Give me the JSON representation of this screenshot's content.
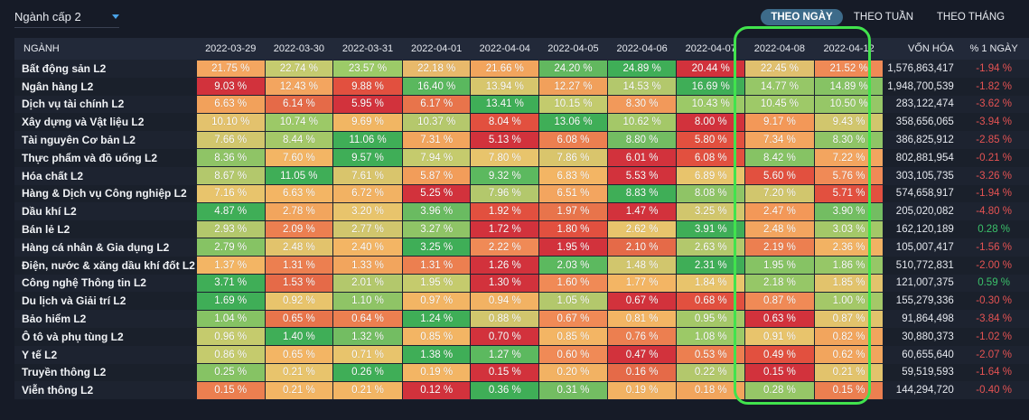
{
  "dropdown": {
    "label": "Ngành cấp 2"
  },
  "tabs": [
    {
      "label": "THEO NGÀY",
      "active": true
    },
    {
      "label": "THEO TUẦN",
      "active": false
    },
    {
      "label": "THEO THÁNG",
      "active": false
    }
  ],
  "table": {
    "headers": {
      "name": "NGÀNH",
      "dates": [
        "2022-03-29",
        "2022-03-30",
        "2022-03-31",
        "2022-04-01",
        "2022-04-04",
        "2022-04-05",
        "2022-04-06",
        "2022-04-07",
        "2022-04-08",
        "2022-04-12"
      ],
      "cap": "VỐN HÓA",
      "chg": "% 1 NGÀY"
    },
    "rows": [
      {
        "name": "Bất động sản L2",
        "values": [
          "21.75 %",
          "22.74 %",
          "23.57 %",
          "22.18 %",
          "21.66 %",
          "24.20 %",
          "24.89 %",
          "20.44 %",
          "22.45 %",
          "21.52 %"
        ],
        "colors": [
          "#f4a660",
          "#c5cb6f",
          "#9ccb68",
          "#e8b96b",
          "#f2a55d",
          "#62b85f",
          "#3fae57",
          "#d2323c",
          "#e0c06e",
          "#f08a56"
        ],
        "cap": "1,576,863,417",
        "chg": "-1.94 %"
      },
      {
        "name": "Ngân hàng L2",
        "values": [
          "9.03 %",
          "12.43 %",
          "9.88 %",
          "16.40 %",
          "13.94 %",
          "12.27 %",
          "14.53 %",
          "16.69 %",
          "14.77 %",
          "14.89 %"
        ],
        "colors": [
          "#d2323c",
          "#f3a55f",
          "#e2503f",
          "#5ab85e",
          "#d7c66c",
          "#f1a05b",
          "#b3c86c",
          "#3fae57",
          "#96c767",
          "#86c364"
        ],
        "cap": "1,948,700,539",
        "chg": "-1.82 %"
      },
      {
        "name": "Dịch vụ tài chính L2",
        "values": [
          "6.63 %",
          "6.14 %",
          "5.95 %",
          "6.17 %",
          "13.41 %",
          "10.15 %",
          "8.30 %",
          "10.43 %",
          "10.45 %",
          "10.50 %"
        ],
        "colors": [
          "#f2a15b",
          "#e56a48",
          "#d2323c",
          "#e8744b",
          "#3fae57",
          "#c3cb6d",
          "#f2995a",
          "#9cc967",
          "#9ec968",
          "#96c767"
        ],
        "cap": "283,122,474",
        "chg": "-3.62 %"
      },
      {
        "name": "Xây dựng và Vật liệu L2",
        "values": [
          "10.10 %",
          "10.74 %",
          "9.69 %",
          "10.37 %",
          "8.04 %",
          "13.06 %",
          "10.62 %",
          "8.00 %",
          "9.17 %",
          "9.43 %"
        ],
        "colors": [
          "#e3c26d",
          "#9cc967",
          "#f1b663",
          "#b5c86c",
          "#e2503f",
          "#3fae57",
          "#a4c868",
          "#d2323c",
          "#f39858",
          "#d1c66d"
        ],
        "cap": "358,656,065",
        "chg": "-3.94 %"
      },
      {
        "name": "Tài nguyên Cơ bản L2",
        "values": [
          "7.66 %",
          "8.44 %",
          "11.06 %",
          "7.31 %",
          "5.13 %",
          "6.08 %",
          "8.80 %",
          "5.80 %",
          "7.34 %",
          "8.30 %"
        ],
        "colors": [
          "#d1c66d",
          "#a4c868",
          "#3fae57",
          "#f2a55d",
          "#d2323c",
          "#ec7f50",
          "#73bd62",
          "#e2503f",
          "#f3a55f",
          "#8fc466"
        ],
        "cap": "386,825,912",
        "chg": "-2.85 %"
      },
      {
        "name": "Thực phẩm và đồ uống L2",
        "values": [
          "8.36 %",
          "7.60 %",
          "9.57 %",
          "7.94 %",
          "7.80 %",
          "7.86 %",
          "6.01 %",
          "6.08 %",
          "8.42 %",
          "7.22 %"
        ],
        "colors": [
          "#8fc466",
          "#f3b564",
          "#3fae57",
          "#c5cb6d",
          "#e8c46c",
          "#d9c56c",
          "#d2323c",
          "#e2503f",
          "#86c364",
          "#f3a55f"
        ],
        "cap": "802,881,954",
        "chg": "-0.21 %"
      },
      {
        "name": "Hóa chất L2",
        "values": [
          "8.67 %",
          "11.05 %",
          "7.61 %",
          "5.87 %",
          "9.32 %",
          "6.83 %",
          "5.53 %",
          "6.89 %",
          "5.60 %",
          "5.76 %"
        ],
        "colors": [
          "#b3c86c",
          "#3fae57",
          "#d9c56c",
          "#f29d5a",
          "#5cb95f",
          "#f3b564",
          "#d2323c",
          "#e8c46c",
          "#e2503f",
          "#f08a56"
        ],
        "cap": "303,105,735",
        "chg": "-3.26 %"
      },
      {
        "name": "Hàng & Dịch vụ Công nghiệp L2",
        "values": [
          "7.16 %",
          "6.63 %",
          "6.72 %",
          "5.25 %",
          "7.96 %",
          "6.51 %",
          "8.83 %",
          "8.08 %",
          "7.20 %",
          "5.71 %"
        ],
        "colors": [
          "#e8c46c",
          "#f3b564",
          "#f2b263",
          "#d2323c",
          "#b3c86c",
          "#f3a55f",
          "#3fae57",
          "#8fc466",
          "#d1c66d",
          "#e2503f"
        ],
        "cap": "574,658,917",
        "chg": "-1.94 %"
      },
      {
        "name": "Dầu khí L2",
        "values": [
          "4.87 %",
          "2.78 %",
          "3.20 %",
          "3.96 %",
          "1.92 %",
          "1.97 %",
          "1.47 %",
          "3.25 %",
          "2.47 %",
          "3.90 %"
        ],
        "colors": [
          "#3fae57",
          "#f2a55d",
          "#e8c46c",
          "#6abb61",
          "#e2503f",
          "#e8744b",
          "#d2323c",
          "#d1c66d",
          "#f39858",
          "#73bd62"
        ],
        "cap": "205,020,082",
        "chg": "-4.80 %"
      },
      {
        "name": "Bán lẻ L2",
        "values": [
          "2.93 %",
          "2.09 %",
          "2.77 %",
          "3.27 %",
          "1.72 %",
          "1.80 %",
          "2.62 %",
          "3.91 %",
          "2.48 %",
          "3.03 %"
        ],
        "colors": [
          "#b3c86c",
          "#ec7f50",
          "#d1c66d",
          "#8fc466",
          "#d2323c",
          "#e2503f",
          "#e8c46c",
          "#3fae57",
          "#f3a55f",
          "#a4c868"
        ],
        "cap": "162,120,189",
        "chg": "0.28 %"
      },
      {
        "name": "Hàng cá nhân & Gia dụng L2",
        "values": [
          "2.79 %",
          "2.48 %",
          "2.40 %",
          "3.25 %",
          "2.22 %",
          "1.95 %",
          "2.10 %",
          "2.63 %",
          "2.19 %",
          "2.36 %"
        ],
        "colors": [
          "#86c364",
          "#e2c36c",
          "#f3b564",
          "#3fae57",
          "#f08a56",
          "#d2323c",
          "#e56a48",
          "#b3c86c",
          "#ec7f50",
          "#f2b263"
        ],
        "cap": "105,007,417",
        "chg": "-1.56 %"
      },
      {
        "name": "Điện, nước & xăng dầu khí đốt L2",
        "values": [
          "1.37 %",
          "1.31 %",
          "1.33 %",
          "1.31 %",
          "1.26 %",
          "2.03 %",
          "1.48 %",
          "2.31 %",
          "1.95 %",
          "1.86 %"
        ],
        "colors": [
          "#f3b564",
          "#ec7f50",
          "#f2a55d",
          "#ec7f50",
          "#d2323c",
          "#5cb95f",
          "#d1c66d",
          "#3fae57",
          "#86c364",
          "#96c767"
        ],
        "cap": "510,772,831",
        "chg": "-2.00 %"
      },
      {
        "name": "Công nghệ Thông tin L2",
        "values": [
          "3.71 %",
          "1.53 %",
          "2.01 %",
          "1.95 %",
          "1.30 %",
          "1.60 %",
          "1.77 %",
          "1.84 %",
          "2.18 %",
          "1.85 %"
        ],
        "colors": [
          "#3fae57",
          "#e56a48",
          "#b3c86c",
          "#c5cb6d",
          "#d2323c",
          "#f08a56",
          "#f3b564",
          "#e8c46c",
          "#96c767",
          "#e2c36c"
        ],
        "cap": "121,007,375",
        "chg": "0.59 %"
      },
      {
        "name": "Du lịch và Giải trí L2",
        "values": [
          "1.69 %",
          "0.92 %",
          "1.10 %",
          "0.97 %",
          "0.94 %",
          "1.05 %",
          "0.67 %",
          "0.68 %",
          "0.87 %",
          "1.00 %"
        ],
        "colors": [
          "#3fae57",
          "#e8c46c",
          "#8fc466",
          "#f3b564",
          "#f2b263",
          "#b3c86c",
          "#d2323c",
          "#e2503f",
          "#f08a56",
          "#a4c868"
        ],
        "cap": "155,279,336",
        "chg": "-0.30 %"
      },
      {
        "name": "Bảo hiểm L2",
        "values": [
          "1.04 %",
          "0.65 %",
          "0.64 %",
          "1.24 %",
          "0.88 %",
          "0.67 %",
          "0.81 %",
          "0.95 %",
          "0.63 %",
          "0.87 %"
        ],
        "colors": [
          "#86c364",
          "#e8744b",
          "#ec7f50",
          "#3fae57",
          "#d1c66d",
          "#f08a56",
          "#f3b564",
          "#a4c868",
          "#d2323c",
          "#e2c36c"
        ],
        "cap": "91,864,498",
        "chg": "-3.84 %"
      },
      {
        "name": "Ô tô và phụ tùng L2",
        "values": [
          "0.96 %",
          "1.40 %",
          "1.32 %",
          "0.85 %",
          "0.70 %",
          "0.85 %",
          "0.76 %",
          "1.08 %",
          "0.91 %",
          "0.82 %"
        ],
        "colors": [
          "#c5cb6d",
          "#3fae57",
          "#73bd62",
          "#f3b564",
          "#d2323c",
          "#f3b564",
          "#ec7f50",
          "#9cc967",
          "#e8c46c",
          "#f2a55d"
        ],
        "cap": "30,880,373",
        "chg": "-1.02 %"
      },
      {
        "name": "Y tế L2",
        "values": [
          "0.86 %",
          "0.65 %",
          "0.71 %",
          "1.38 %",
          "1.27 %",
          "0.60 %",
          "0.47 %",
          "0.53 %",
          "0.49 %",
          "0.62 %"
        ],
        "colors": [
          "#c5cb6d",
          "#f3b564",
          "#e8c46c",
          "#3fae57",
          "#5cb95f",
          "#f08a56",
          "#d2323c",
          "#ec7f50",
          "#e2503f",
          "#f2a55d"
        ],
        "cap": "60,655,640",
        "chg": "-2.07 %"
      },
      {
        "name": "Truyền thông L2",
        "values": [
          "0.25 %",
          "0.21 %",
          "0.26 %",
          "0.19 %",
          "0.15 %",
          "0.20 %",
          "0.16 %",
          "0.22 %",
          "0.15 %",
          "0.21 %"
        ],
        "colors": [
          "#86c364",
          "#e8c46c",
          "#3fae57",
          "#f3b564",
          "#d2323c",
          "#f2b263",
          "#e56a48",
          "#b3c86c",
          "#d2323c",
          "#e2c36c"
        ],
        "cap": "59,519,593",
        "chg": "-1.64 %"
      },
      {
        "name": "Viễn thông L2",
        "values": [
          "0.15 %",
          "0.21 %",
          "0.21 %",
          "0.12 %",
          "0.36 %",
          "0.31 %",
          "0.19 %",
          "0.18 %",
          "0.28 %",
          "0.15 %"
        ],
        "colors": [
          "#ec7f50",
          "#f3b564",
          "#f3b564",
          "#d2323c",
          "#3fae57",
          "#73bd62",
          "#f2b263",
          "#f2a55d",
          "#96c767",
          "#ec7f50"
        ],
        "cap": "144,294,720",
        "chg": "-0.40 %"
      }
    ]
  }
}
